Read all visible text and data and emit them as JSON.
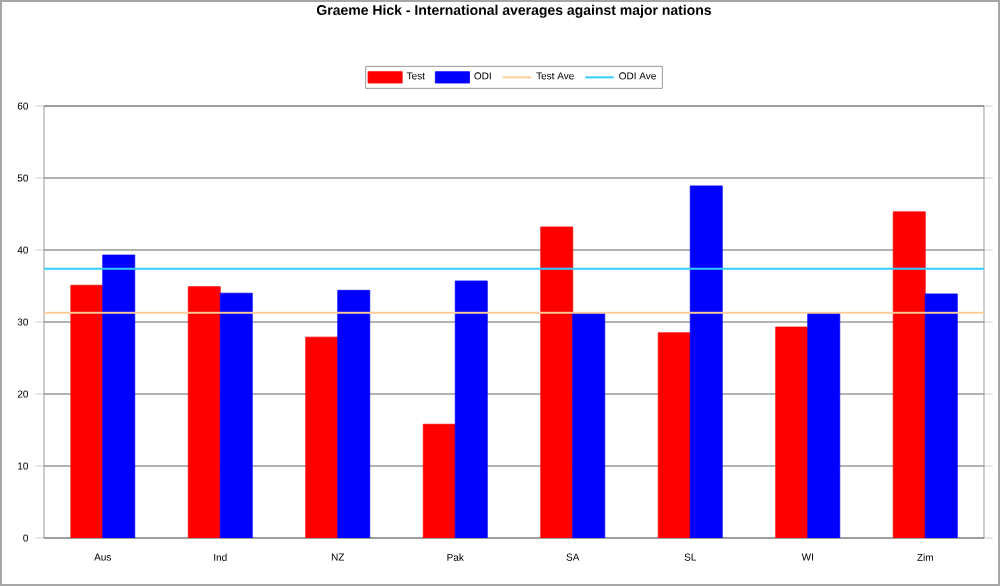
{
  "chart_data": {
    "type": "bar",
    "title": "Graeme Hick - International averages against major nations",
    "categories": [
      "Aus",
      "Ind",
      "NZ",
      "Pak",
      "SA",
      "SL",
      "WI",
      "Zim"
    ],
    "series": [
      {
        "name": "Test",
        "color": "#ff0000",
        "values": [
          35.1,
          34.9,
          27.9,
          15.8,
          43.2,
          28.5,
          29.3,
          45.3
        ]
      },
      {
        "name": "ODI",
        "color": "#0000ff",
        "values": [
          39.3,
          34.0,
          34.4,
          35.7,
          31.2,
          48.9,
          31.2,
          33.9
        ]
      }
    ],
    "ref_lines": [
      {
        "axis": "y",
        "value": 31.3,
        "label": "Test Ave",
        "color": "#ffcc99"
      },
      {
        "axis": "y",
        "value": 37.4,
        "label": "ODI Ave",
        "color": "#33ccff"
      }
    ],
    "ylim": [
      0,
      60
    ],
    "yticks": [
      0,
      10,
      20,
      30,
      40,
      50,
      60
    ],
    "grid": "y",
    "legend": "top"
  }
}
